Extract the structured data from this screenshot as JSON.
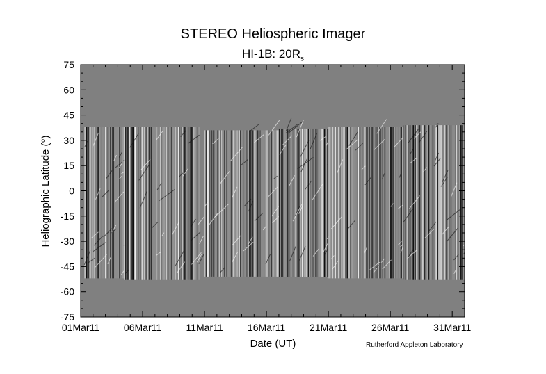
{
  "title": "STEREO Heliospheric Imager",
  "subtitle_main": "HI-1B: 20R",
  "subtitle_sub": "s",
  "credit": "Rutherford Appleton Laboratory",
  "chart_data": {
    "type": "heatmap",
    "title": "STEREO Heliospheric Imager",
    "subtitle": "HI-1B: 20Rs",
    "xlabel": "Date (UT)",
    "ylabel": "Heliographic Latitude (°)",
    "x_tick_labels": [
      "01Mar11",
      "06Mar11",
      "11Mar11",
      "16Mar11",
      "21Mar11",
      "26Mar11",
      "31Mar11"
    ],
    "x_tick_days": [
      1,
      6,
      11,
      16,
      21,
      26,
      31
    ],
    "xlim_days": [
      1,
      32
    ],
    "y_ticks": [
      75,
      60,
      45,
      30,
      15,
      0,
      -15,
      -30,
      -45,
      -60,
      -75
    ],
    "ylim": [
      -75,
      75
    ],
    "background_color": "#808080",
    "data_segments": [
      {
        "start_day": 1.0,
        "end_day": 4.5,
        "lat_top": 38,
        "lat_bottom": -52
      },
      {
        "start_day": 4.5,
        "end_day": 10.6,
        "lat_top": 38,
        "lat_bottom": -53
      },
      {
        "start_day": 11.0,
        "end_day": 17.0,
        "lat_top": 36,
        "lat_bottom": -51
      },
      {
        "start_day": 17.0,
        "end_day": 21.0,
        "lat_top": 37,
        "lat_bottom": -51
      },
      {
        "start_day": 21.0,
        "end_day": 27.0,
        "lat_top": 38,
        "lat_bottom": -52
      },
      {
        "start_day": 27.0,
        "end_day": 32.0,
        "lat_top": 39,
        "lat_bottom": -53
      }
    ],
    "grid": false,
    "legend": "none"
  }
}
